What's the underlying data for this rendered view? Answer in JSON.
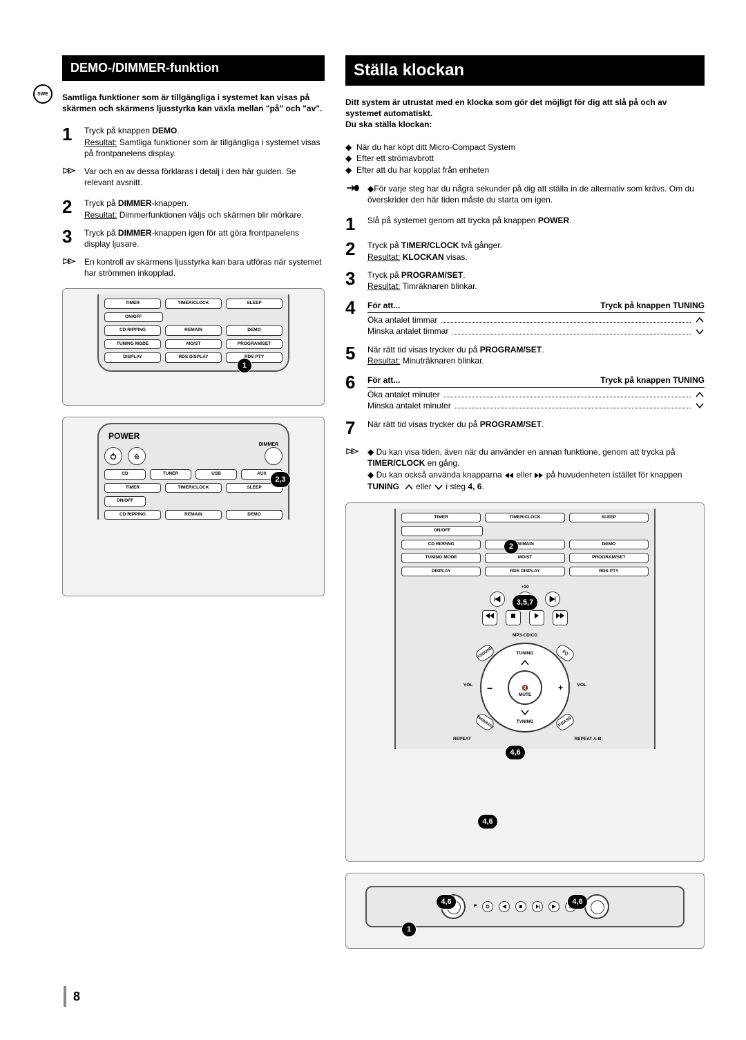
{
  "page_number": "8",
  "swe_label": "SWE",
  "left": {
    "heading": "DEMO-/DIMMER-funktion",
    "intro": "Samtliga funktioner som är tillgängliga i systemet kan visas på skärmen och skärmens ljusstyrka kan växla mellan \"på\" och \"av\".",
    "steps": [
      {
        "n": "1",
        "html": "Tryck på knappen <b>DEMO</b>.<br><u>Resultat:</u> Samtliga funktioner som är tillgängliga i systemet visas på frontpanelens display."
      },
      {
        "note": true,
        "text": "Var och en av dessa förklaras i detalj i den här guiden. Se relevant avsnitt."
      },
      {
        "n": "2",
        "html": "Tryck på <b>DIMMER</b>-knappen.<br><u>Resultat:</u> Dimmerfunktionen väljs och skärmen blir mörkare."
      },
      {
        "n": "3",
        "html": "Tryck på <b>DIMMER</b>-knappen igen för att göra frontpanelens display ljusare."
      },
      {
        "note": true,
        "text": "En kontroll av skärmens ljusstyrka kan bara utföras när systemet har strömmen inkopplad."
      }
    ],
    "remote1": {
      "rows": [
        [
          "TIMER",
          "TIMER/CLOCK",
          "SLEEP"
        ],
        [
          "ON/OFF",
          "",
          ""
        ],
        [
          "CD RIPPING",
          "REMAIN",
          "DEMO"
        ],
        [
          "TUNING MODE",
          "MO/ST",
          "PROGRAM/SET"
        ],
        [
          "DISPLAY",
          "RDS DISPLAY",
          "RDS PTY"
        ]
      ],
      "marker": "1"
    },
    "remote2": {
      "power": "POWER",
      "dimmer": "DIMMER",
      "row_src": [
        "CD",
        "TUNER",
        "USB",
        "AUX"
      ],
      "row_a": [
        "TIMER",
        "TIMER/CLOCK",
        "SLEEP"
      ],
      "onoff": "ON/OFF",
      "row_c": [
        "CD RIPPING",
        "REMAIN",
        "DEMO"
      ],
      "marker": "2,3"
    }
  },
  "right": {
    "heading": "Ställa klockan",
    "intro": "Ditt system är utrustat med en klocka som gör det möjligt för dig att slå på och av systemet automatiskt.",
    "intro2": "Du ska ställa klockan:",
    "bullets": [
      "När du har köpt ditt Micro-Compact System",
      "Efter ett strömavbrott",
      "Efter att du har kopplat från enheten"
    ],
    "hand_note": "För varje steg har du några sekunder på dig att ställa in de alternativ som krävs. Om du överskrider den här tiden måste du starta om igen.",
    "steps": [
      {
        "n": "1",
        "html": "Slå på systemet genom att trycka på knappen <b>POWER</b>."
      },
      {
        "n": "2",
        "html": "Tryck på <b>TIMER/CLOCK</b> två gånger.<br><u>Resultat:</u> <b>KLOCKAN</b> visas."
      },
      {
        "n": "3",
        "html": "Tryck på <b>PROGRAM/SET</b>.<br><u>Resultat:</u> Timräknaren blinkar."
      },
      {
        "n": "4",
        "table": {
          "head_l": "För att...",
          "head_r": "Tryck på knappen TUNING",
          "rows": [
            [
              "Öka antalet timmar",
              "up"
            ],
            [
              "Minska antalet timmar",
              "down"
            ]
          ]
        }
      },
      {
        "n": "5",
        "html": "När rätt tid visas trycker du på <b>PROGRAM/SET</b>.<br><u>Resultat:</u> Minuträknaren blinkar."
      },
      {
        "n": "6",
        "table": {
          "head_l": "För att...",
          "head_r": "Tryck på knappen TUNING",
          "rows": [
            [
              "Öka antalet minuter",
              "up"
            ],
            [
              "Minska antalet minuter",
              "down"
            ]
          ]
        }
      },
      {
        "n": "7",
        "html": "När rätt tid visas trycker du på <b>PROGRAM/SET</b>."
      }
    ],
    "end_note_l1_a": "Du kan visa tiden, även när du använder en annan funktione, genom att trycka på ",
    "end_note_l1_b": "TIMER/CLOCK",
    "end_note_l1_c": " en gång.",
    "end_note_l2_a": "Du kan också använda knapparna ",
    "end_note_l2_b": " eller ",
    "end_note_l2_c": " på huvudenheten istället för knappen ",
    "end_note_l2_d": "TUNING",
    "end_note_l2_e": " eller ",
    "end_note_l2_f": " i steg ",
    "end_note_l2_g": "4, 6",
    "remote": {
      "rows_top": [
        [
          "TIMER",
          "TIMER/CLOCK",
          "SLEEP"
        ],
        [
          "ON/OFF",
          "",
          ""
        ],
        [
          "CD RIPPING",
          "REMAIN",
          "DEMO"
        ],
        [
          "TUNING MODE",
          "MO/ST",
          "PROGRAM/SET"
        ],
        [
          "DISPLAY",
          "RDS DISPLAY",
          "RDS PTY"
        ]
      ],
      "plus10": "+10",
      "mp3": "MP3-CD/CD",
      "ring": {
        "tuning": "TUNING",
        "vol_l": "VOL",
        "vol_r": "VOL",
        "mute": "MUTE",
        "tvning": "TVNING",
        "psound": "P.SOUND",
        "eq": "EQ",
        "treb": "TREB/BASS",
        "pbass": "P.BASS"
      },
      "repeat": "REPEAT",
      "repeat_ab": "REPEAT A-B",
      "markers": {
        "m2": "2",
        "m357": "3,5,7",
        "m46a": "4,6",
        "m46b": "4,6"
      }
    },
    "unit": {
      "m46a": "4,6",
      "m46b": "4,6",
      "m1": "1",
      "f": "F"
    }
  }
}
